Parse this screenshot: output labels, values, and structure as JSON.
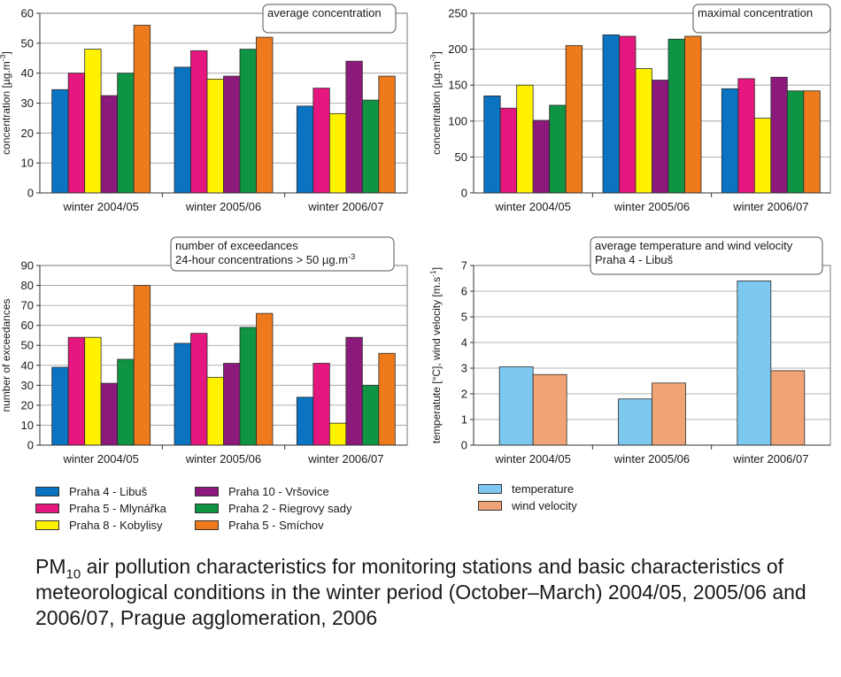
{
  "stations": [
    {
      "name": "Praha 4 - Libuš",
      "color": "#0a73c2"
    },
    {
      "name": "Praha 5 - Mlynářka",
      "color": "#e5177f"
    },
    {
      "name": "Praha 8 - Kobylisy",
      "color": "#fff200"
    },
    {
      "name": "Praha 10 - Vršovice",
      "color": "#8b1a7c"
    },
    {
      "name": "Praha 2 - Riegrovy sady",
      "color": "#0f9444"
    },
    {
      "name": "Praha 5 - Smíchov",
      "color": "#ee7a1b"
    }
  ],
  "meteo_series": [
    {
      "name": "temperature",
      "color": "#7cc8ef"
    },
    {
      "name": "wind velocity",
      "color": "#f0a374"
    }
  ],
  "caption": {
    "prefix": "PM",
    "subscript": "10",
    "text": " air pollution characteristics for monitoring stations and basic characteristics of meteorological conditions in the winter period (October–March) 2004/05, 2005/06 and 2006/07, Prague agglomeration, 2006"
  },
  "chart_data": [
    {
      "type": "bar",
      "title": "average concentration",
      "ylabel": "concentration [µg.m-3]",
      "ylim": [
        0,
        60
      ],
      "yticks": [
        0,
        10,
        20,
        30,
        40,
        50,
        60
      ],
      "grid": true,
      "categories": [
        "winter 2004/05",
        "winter 2005/06",
        "winter 2006/07"
      ],
      "series": [
        {
          "name": "Praha 4 - Libuš",
          "values": [
            34.5,
            42,
            29
          ]
        },
        {
          "name": "Praha 5 - Mlynářka",
          "values": [
            40,
            47.5,
            35
          ]
        },
        {
          "name": "Praha 8 - Kobylisy",
          "values": [
            48,
            38,
            26.5
          ]
        },
        {
          "name": "Praha 10 - Vršovice",
          "values": [
            32.5,
            39,
            44
          ]
        },
        {
          "name": "Praha 2 - Riegrovy sady",
          "values": [
            40,
            48,
            31
          ]
        },
        {
          "name": "Praha 5 - Smíchov",
          "values": [
            56,
            52,
            39
          ]
        }
      ]
    },
    {
      "type": "bar",
      "title": "maximal concentration",
      "ylabel": "concentration [µg.m-3]",
      "ylim": [
        0,
        250
      ],
      "yticks": [
        0,
        50,
        100,
        150,
        200,
        250
      ],
      "grid": true,
      "categories": [
        "winter 2004/05",
        "winter 2005/06",
        "winter 2006/07"
      ],
      "series": [
        {
          "name": "Praha 4 - Libuš",
          "values": [
            135,
            220,
            145
          ]
        },
        {
          "name": "Praha 5 - Mlynářka",
          "values": [
            118,
            218,
            159
          ]
        },
        {
          "name": "Praha 8 - Kobylisy",
          "values": [
            150,
            173,
            104
          ]
        },
        {
          "name": "Praha 10 - Vršovice",
          "values": [
            101,
            157,
            161
          ]
        },
        {
          "name": "Praha 2 - Riegrovy sady",
          "values": [
            122,
            214,
            142
          ]
        },
        {
          "name": "Praha 5 - Smíchov",
          "values": [
            205,
            218,
            142
          ]
        }
      ]
    },
    {
      "type": "bar",
      "title": "number of exceedances",
      "subtitle": "24-hour concentrations > 50 µg.m-3",
      "ylabel": "number of exceedances",
      "ylim": [
        0,
        90
      ],
      "yticks": [
        0,
        10,
        20,
        30,
        40,
        50,
        60,
        70,
        80,
        90
      ],
      "grid": true,
      "categories": [
        "winter 2004/05",
        "winter 2005/06",
        "winter 2006/07"
      ],
      "series": [
        {
          "name": "Praha 4 - Libuš",
          "values": [
            39,
            51,
            24
          ]
        },
        {
          "name": "Praha 5 - Mlynářka",
          "values": [
            54,
            56,
            41
          ]
        },
        {
          "name": "Praha 8 - Kobylisy",
          "values": [
            54,
            34,
            11
          ]
        },
        {
          "name": "Praha 10 - Vršovice",
          "values": [
            31,
            41,
            54
          ]
        },
        {
          "name": "Praha 2 - Riegrovy sady",
          "values": [
            43,
            59,
            30
          ]
        },
        {
          "name": "Praha 5 - Smíchov",
          "values": [
            80,
            66,
            46
          ]
        }
      ]
    },
    {
      "type": "bar",
      "title": "average temperature and wind velocity",
      "subtitle": "Praha 4 - Libuš",
      "ylabel": "temperatute [°C], wind velocity [m.s-1]",
      "ylim": [
        0,
        7
      ],
      "yticks": [
        0,
        1,
        2,
        3,
        4,
        5,
        6,
        7
      ],
      "grid": true,
      "categories": [
        "winter 2004/05",
        "winter 2005/06",
        "winter 2006/07"
      ],
      "series": [
        {
          "name": "temperature",
          "values": [
            3.05,
            1.8,
            6.4
          ]
        },
        {
          "name": "wind velocity",
          "values": [
            2.75,
            2.42,
            2.9
          ]
        }
      ]
    }
  ]
}
